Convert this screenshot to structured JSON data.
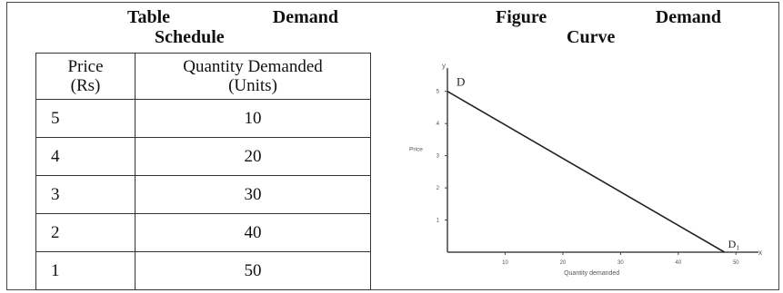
{
  "table": {
    "title_word1": "Table",
    "title_word2": "Demand",
    "title_line2": "Schedule",
    "col_price_line1": "Price",
    "col_price_line2": "(Rs)",
    "col_qty_line1": "Quantity Demanded",
    "col_qty_line2": "(Units)",
    "rows": [
      {
        "price": "5",
        "qty": "10"
      },
      {
        "price": "4",
        "qty": "20"
      },
      {
        "price": "3",
        "qty": "30"
      },
      {
        "price": "2",
        "qty": "40"
      },
      {
        "price": "1",
        "qty": "50"
      }
    ]
  },
  "figure": {
    "title_word1": "Figure",
    "title_word2": "Demand",
    "title_line2": "Curve"
  },
  "chart_data": {
    "type": "line",
    "xlabel": "Quantity demanded",
    "ylabel": "Price",
    "x_axis_letter": "x",
    "y_axis_letter": "y",
    "xticks": [
      "10",
      "20",
      "30",
      "40",
      "50"
    ],
    "yticks": [
      "1",
      "2",
      "3",
      "4",
      "5"
    ],
    "xlim": [
      0,
      52
    ],
    "ylim": [
      0,
      5.5
    ],
    "series": [
      {
        "points": [
          [
            0,
            5
          ],
          [
            48,
            0
          ]
        ],
        "start_label": "D",
        "end_label": "D₁"
      }
    ],
    "colors": {
      "line": "#222222",
      "axis": "#444444"
    }
  }
}
